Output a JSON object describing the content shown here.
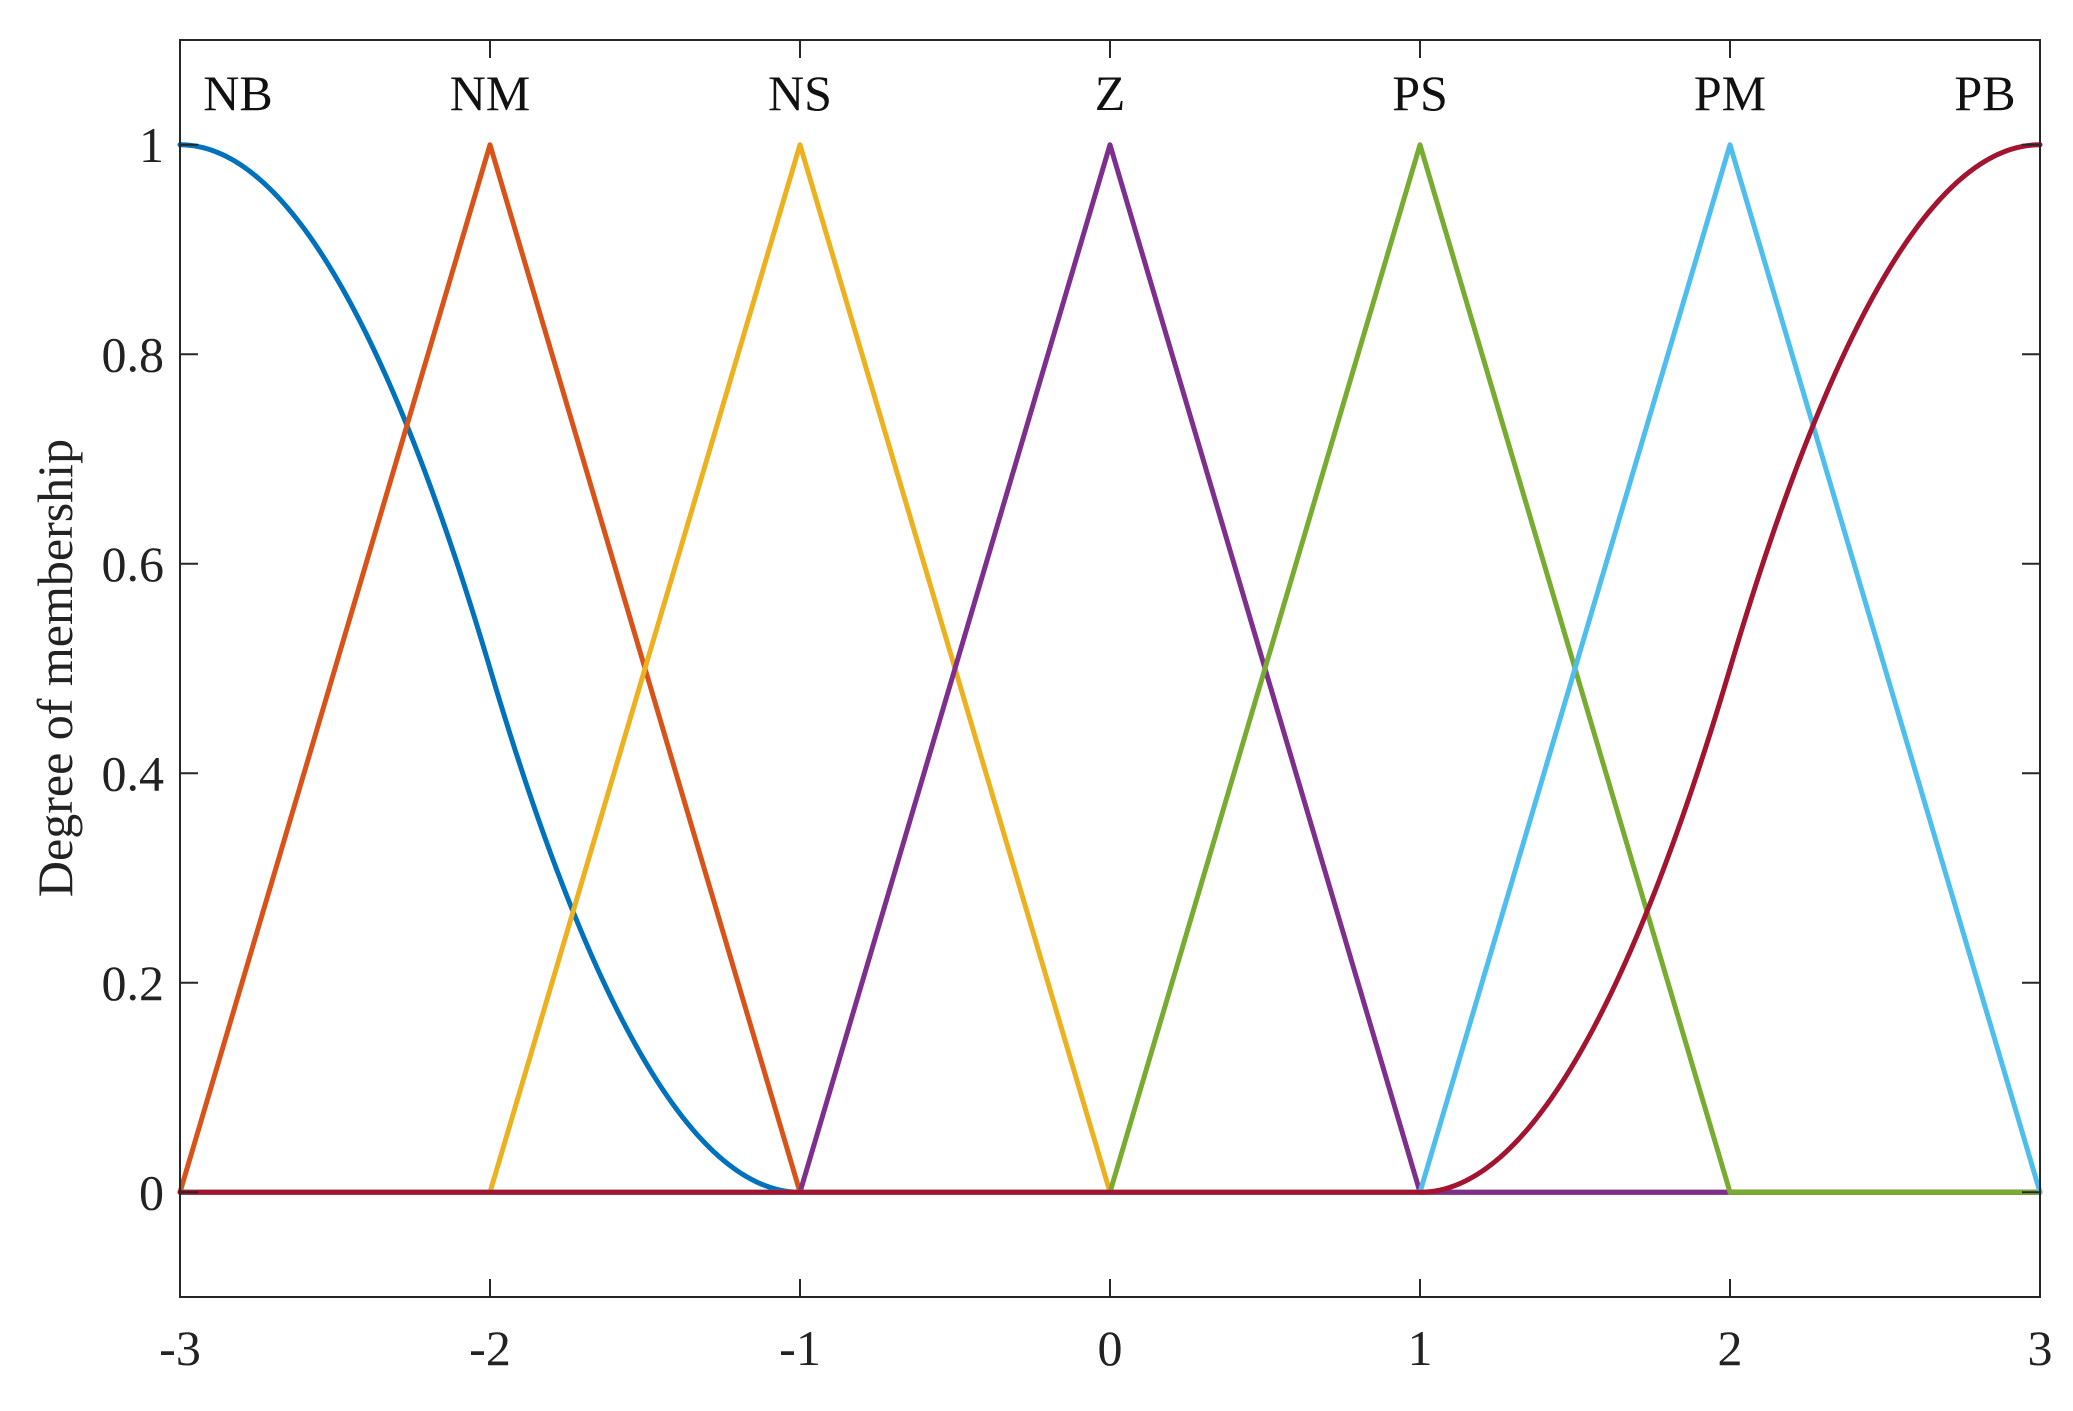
{
  "chart_data": {
    "type": "line",
    "title": "",
    "xlabel": "",
    "ylabel": "Degree of membership",
    "xlim": [
      -3,
      3
    ],
    "ylim": [
      -0.1,
      1.1
    ],
    "xticks": [
      -3,
      -2,
      -1,
      0,
      1,
      2,
      3
    ],
    "xtick_labels": [
      "-3",
      "-2",
      "-1",
      "0",
      "1",
      "2",
      "3"
    ],
    "yticks": [
      0,
      0.2,
      0.4,
      0.6,
      0.8,
      1
    ],
    "ytick_labels": [
      "0",
      "0.2",
      "0.4",
      "0.6",
      "0.8",
      "1"
    ],
    "grid": false,
    "legend": "none",
    "series": [
      {
        "name": "NB",
        "shape": "z-shaped",
        "params": [
          -3,
          -1
        ],
        "color": "#0072BD"
      },
      {
        "name": "NM",
        "shape": "triangle",
        "params": [
          -3,
          -2,
          -1
        ],
        "color": "#D95319"
      },
      {
        "name": "NS",
        "shape": "triangle",
        "params": [
          -2,
          -1,
          0
        ],
        "color": "#EDB120"
      },
      {
        "name": "Z",
        "shape": "triangle",
        "params": [
          -1,
          0,
          1
        ],
        "color": "#7E2F8E"
      },
      {
        "name": "PS",
        "shape": "triangle",
        "params": [
          0,
          1,
          2
        ],
        "color": "#77AC30"
      },
      {
        "name": "PM",
        "shape": "triangle",
        "params": [
          1,
          2,
          3
        ],
        "color": "#4DBEEE"
      },
      {
        "name": "PB",
        "shape": "s-shaped",
        "params": [
          1,
          3
        ],
        "color": "#A2142F"
      }
    ]
  }
}
